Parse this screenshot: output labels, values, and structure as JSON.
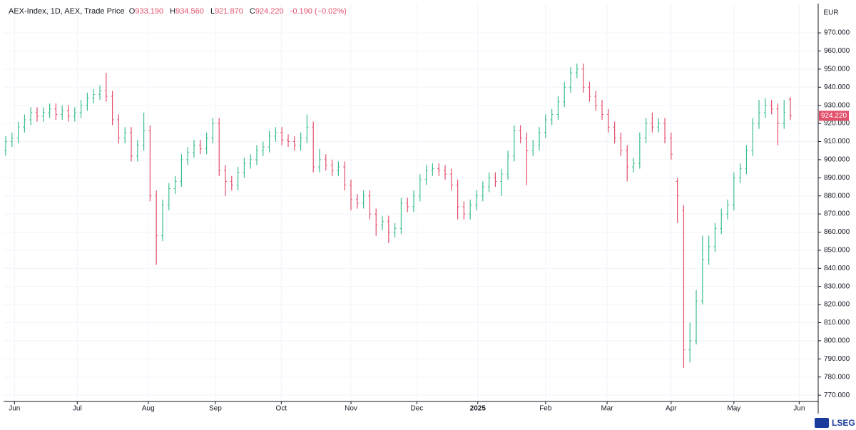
{
  "chart_data": {
    "type": "ohlc",
    "legend": {
      "name": "AEX-Index, 1D, AEX, Trade Price",
      "open_prefix": "O",
      "open": "933.190",
      "high_prefix": "H",
      "high": "934.560",
      "low_prefix": "L",
      "low": "921.870",
      "close_prefix": "C",
      "close": "924.220",
      "change": "-0.190 (−0.02%)"
    },
    "currency": "EUR",
    "last_price_label": "924.220",
    "watermark": "LSEG",
    "up_color": "#3cbf8c",
    "down_color": "#e3506c",
    "grid": true,
    "xlim": [
      -0.34,
      129.2
    ],
    "ylim": [
      766.5,
      985
    ],
    "xticks": [
      {
        "value": 1.4,
        "label": "Jun"
      },
      {
        "value": 11.4,
        "label": "Jul"
      },
      {
        "value": 22.7,
        "label": "Aug"
      },
      {
        "value": 33.4,
        "label": "Sep"
      },
      {
        "value": 43.9,
        "label": "Oct"
      },
      {
        "value": 55,
        "label": "Nov"
      },
      {
        "value": 65.5,
        "label": "Dec"
      },
      {
        "value": 75.2,
        "label": "2025"
      },
      {
        "value": 86,
        "label": "Feb"
      },
      {
        "value": 95.8,
        "label": "Mar"
      },
      {
        "value": 106,
        "label": "Apr"
      },
      {
        "value": 116,
        "label": "May"
      },
      {
        "value": 126.4,
        "label": "Jun"
      }
    ],
    "yticks": [
      {
        "value": 770,
        "label": "770.000"
      },
      {
        "value": 780,
        "label": "780.000"
      },
      {
        "value": 790,
        "label": "790.000"
      },
      {
        "value": 800,
        "label": "800.000"
      },
      {
        "value": 810,
        "label": "810.000"
      },
      {
        "value": 820,
        "label": "820.000"
      },
      {
        "value": 830,
        "label": "830.000"
      },
      {
        "value": 840,
        "label": "840.000"
      },
      {
        "value": 850,
        "label": "850.000"
      },
      {
        "value": 860,
        "label": "860.000"
      },
      {
        "value": 870,
        "label": "870.000"
      },
      {
        "value": 880,
        "label": "880.000"
      },
      {
        "value": 890,
        "label": "890.000"
      },
      {
        "value": 900,
        "label": "900.000"
      },
      {
        "value": 910,
        "label": "910.000"
      },
      {
        "value": 920,
        "label": "920.000"
      },
      {
        "value": 930,
        "label": "930.000"
      },
      {
        "value": 940,
        "label": "940.000"
      },
      {
        "value": 950,
        "label": "950.000"
      },
      {
        "value": 960,
        "label": "960.000"
      },
      {
        "value": 970,
        "label": "970.000"
      }
    ],
    "open": [
      905,
      910,
      912,
      918,
      922,
      926,
      924,
      926,
      928,
      925,
      927,
      924,
      926,
      930,
      934,
      936,
      938,
      935,
      922,
      912,
      915,
      902,
      908,
      916,
      880,
      858,
      875,
      884,
      888,
      900,
      904,
      908,
      906,
      912,
      920,
      894,
      888,
      886,
      893,
      898,
      900,
      905,
      907,
      913,
      915,
      911,
      910,
      908,
      912,
      918,
      896,
      900,
      897,
      894,
      896,
      886,
      878,
      876,
      880,
      870,
      864,
      866,
      860,
      862,
      876,
      874,
      880,
      889,
      894,
      895,
      894,
      892,
      886,
      874,
      870,
      875,
      880,
      885,
      890,
      888,
      892,
      902,
      916,
      912,
      905,
      908,
      915,
      922,
      925,
      932,
      940,
      948,
      950,
      940,
      935,
      930,
      925,
      918,
      912,
      905,
      896,
      898,
      912,
      920,
      918,
      920,
      912,
      888,
      872,
      795,
      800,
      822,
      845,
      852,
      862,
      870,
      875,
      890,
      895,
      905,
      920,
      926,
      930,
      928,
      920,
      933.19
    ],
    "high": [
      913,
      915,
      921,
      925,
      929,
      929,
      929,
      931,
      931,
      930,
      930,
      929,
      933,
      937,
      939,
      941,
      948,
      938,
      925,
      918,
      918,
      911,
      926,
      919,
      883,
      878,
      887,
      891,
      903,
      907,
      911,
      911,
      915,
      923,
      923,
      897,
      891,
      896,
      901,
      903,
      908,
      910,
      916,
      918,
      918,
      914,
      913,
      915,
      925,
      921,
      906,
      903,
      900,
      899,
      899,
      889,
      881,
      883,
      883,
      873,
      869,
      869,
      865,
      879,
      879,
      883,
      892,
      897,
      898,
      898,
      897,
      895,
      889,
      877,
      878,
      883,
      888,
      893,
      893,
      895,
      905,
      919,
      919,
      915,
      911,
      918,
      925,
      928,
      935,
      943,
      951,
      953,
      953,
      943,
      938,
      933,
      928,
      921,
      915,
      908,
      901,
      915,
      923,
      926,
      923,
      923,
      915,
      890,
      875,
      810,
      828,
      858,
      858,
      865,
      873,
      878,
      893,
      898,
      908,
      923,
      933,
      934,
      933,
      931,
      933,
      934.56
    ],
    "low": [
      902,
      907,
      909,
      915,
      919,
      921,
      921,
      923,
      922,
      922,
      921,
      921,
      923,
      927,
      931,
      933,
      932,
      919,
      909,
      909,
      899,
      899,
      905,
      877,
      842,
      855,
      872,
      881,
      885,
      897,
      901,
      903,
      903,
      909,
      891,
      880,
      883,
      883,
      890,
      895,
      897,
      902,
      904,
      910,
      908,
      907,
      905,
      905,
      909,
      893,
      893,
      894,
      891,
      891,
      883,
      872,
      873,
      873,
      867,
      858,
      861,
      854,
      857,
      859,
      871,
      871,
      877,
      886,
      891,
      891,
      889,
      883,
      867,
      867,
      867,
      872,
      877,
      882,
      885,
      880,
      889,
      899,
      909,
      886,
      902,
      905,
      912,
      919,
      922,
      929,
      937,
      945,
      937,
      932,
      927,
      922,
      915,
      909,
      902,
      888,
      893,
      895,
      909,
      915,
      915,
      909,
      900,
      865,
      785,
      788,
      798,
      820,
      842,
      849,
      859,
      867,
      872,
      887,
      892,
      902,
      917,
      923,
      925,
      908,
      917,
      921.87
    ],
    "close": [
      910,
      912,
      918,
      922,
      926,
      924,
      926,
      928,
      925,
      927,
      924,
      926,
      930,
      934,
      936,
      938,
      935,
      922,
      912,
      915,
      902,
      908,
      916,
      880,
      858,
      875,
      884,
      888,
      900,
      904,
      908,
      906,
      912,
      920,
      894,
      888,
      886,
      893,
      898,
      900,
      905,
      907,
      913,
      915,
      911,
      910,
      908,
      912,
      918,
      896,
      900,
      897,
      894,
      896,
      886,
      878,
      876,
      880,
      870,
      864,
      866,
      860,
      862,
      876,
      874,
      880,
      889,
      894,
      895,
      894,
      892,
      886,
      874,
      870,
      875,
      880,
      885,
      890,
      888,
      892,
      902,
      916,
      912,
      905,
      908,
      915,
      922,
      925,
      932,
      940,
      948,
      950,
      940,
      935,
      930,
      925,
      918,
      912,
      905,
      896,
      898,
      912,
      920,
      918,
      920,
      912,
      903,
      880,
      795,
      800,
      822,
      845,
      852,
      862,
      870,
      875,
      890,
      895,
      905,
      920,
      926,
      930,
      928,
      920,
      926,
      924.22
    ]
  }
}
